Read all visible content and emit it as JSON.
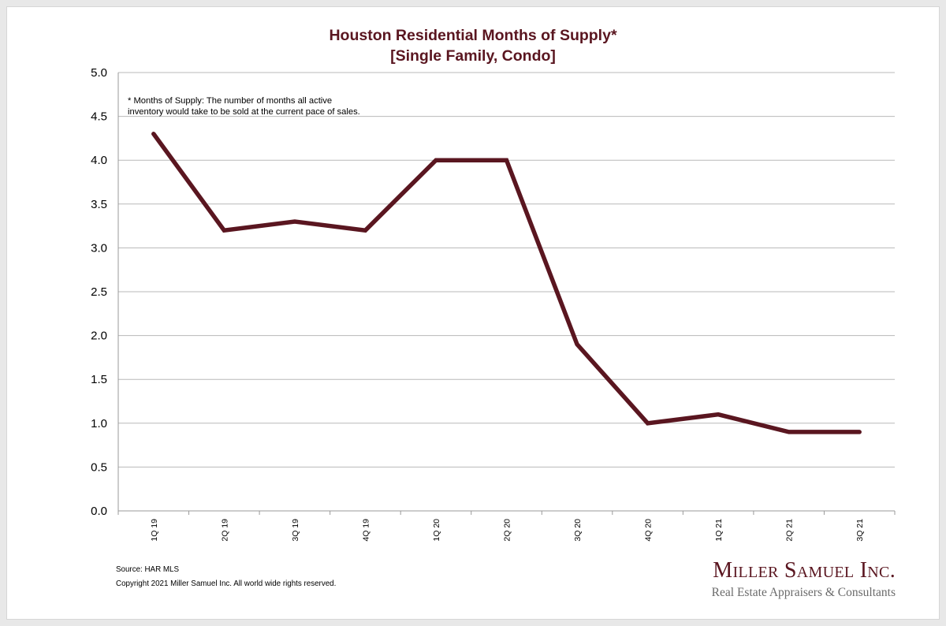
{
  "colors": {
    "line": "#5a1620",
    "grid": "#b8b8b8",
    "axis": "#999999",
    "title": "#5a1620"
  },
  "chart_data": {
    "type": "line",
    "title": "Houston Residential Months of Supply*",
    "subtitle": "[Single Family, Condo]",
    "categories": [
      "1Q 19",
      "2Q 19",
      "3Q 19",
      "4Q 19",
      "1Q 20",
      "2Q 20",
      "3Q 20",
      "4Q 20",
      "1Q 21",
      "2Q 21",
      "3Q 21"
    ],
    "series": [
      {
        "name": "Months of Supply",
        "values": [
          4.3,
          3.2,
          3.3,
          3.2,
          4.0,
          4.0,
          1.9,
          1.0,
          1.1,
          0.9,
          0.9
        ]
      }
    ],
    "ylim": [
      0,
      5
    ],
    "yticks": [
      "5.0",
      "4.5",
      "4.0",
      "3.5",
      "3.0",
      "2.5",
      "2.0",
      "1.5",
      "1.0",
      "0.5",
      "0.0"
    ],
    "ytick_values": [
      5.0,
      4.5,
      4.0,
      3.5,
      3.0,
      2.5,
      2.0,
      1.5,
      1.0,
      0.5,
      0.0
    ],
    "xlabel": "",
    "ylabel": "",
    "grid": true,
    "annotation_lines": [
      "* Months of Supply: The number of months all active",
      "inventory would take to be sold at the current pace of sales."
    ]
  },
  "footer": {
    "source": "Source: HAR MLS",
    "copyright": "Copyright 2021 Miller Samuel Inc.  All world wide rights reserved."
  },
  "brand": {
    "name": "Miller Samuel Inc.",
    "tagline": "Real Estate Appraisers & Consultants"
  }
}
